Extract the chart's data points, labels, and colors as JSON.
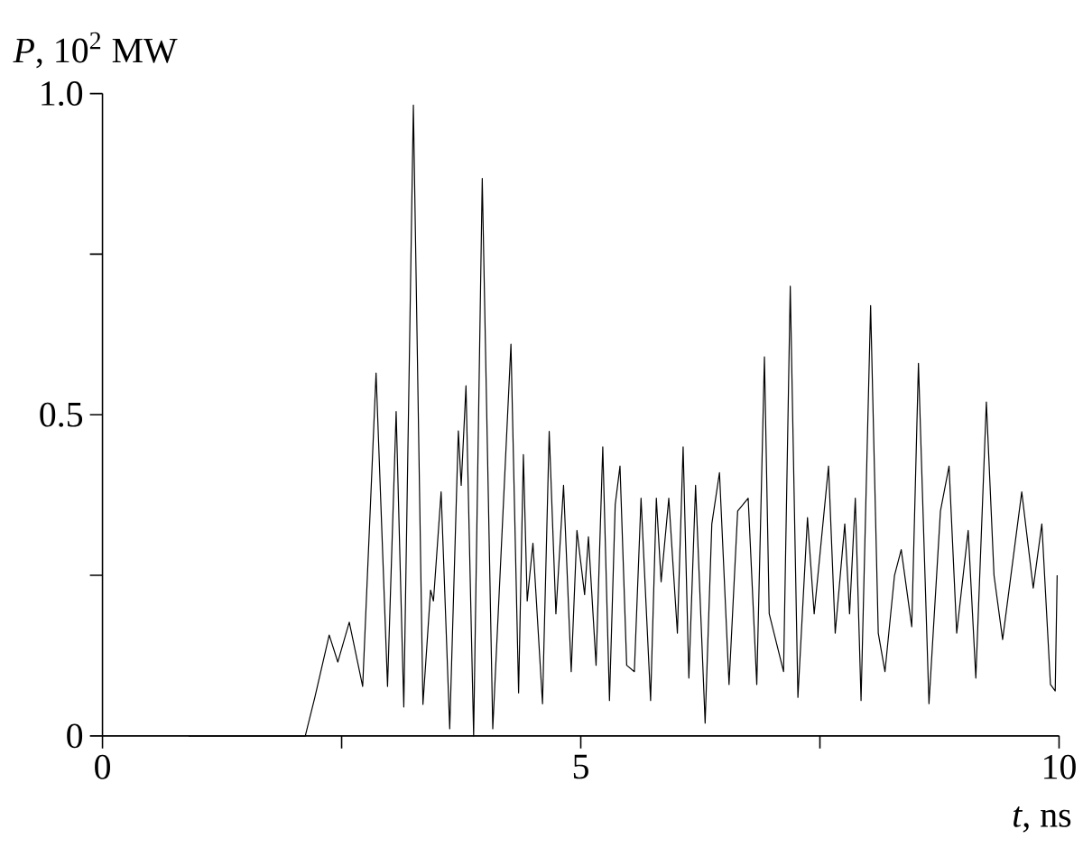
{
  "chart_data": {
    "type": "line",
    "xlabel": "*t*, ns",
    "ylabel": "*P*, 10$^{2}$ MW",
    "xlim": [
      0,
      10
    ],
    "ylim": [
      0,
      1
    ],
    "xticks": [
      0,
      {
        "value": 2.5,
        "label": null
      },
      5,
      {
        "value": 7.5,
        "label": null
      },
      10
    ],
    "yticks": [
      0,
      {
        "value": 0.25,
        "label": null
      },
      {
        "value": 0.5,
        "label": "0.5"
      },
      {
        "value": 0.75,
        "label": null
      },
      {
        "value": 1,
        "label": "1.0"
      }
    ],
    "series": [
      {
        "color": "#000000",
        "x": [
          0.9,
          2.12,
          2.22,
          2.37,
          2.46,
          2.58,
          2.72,
          2.86,
          2.98,
          3.07,
          3.15,
          3.25,
          3.35,
          3.43,
          3.46,
          3.54,
          3.63,
          3.72,
          3.75,
          3.8,
          3.88,
          3.97,
          4.08,
          4.27,
          4.35,
          4.4,
          4.44,
          4.5,
          4.6,
          4.67,
          4.74,
          4.82,
          4.9,
          4.96,
          5.04,
          5.08,
          5.16,
          5.23,
          5.3,
          5.36,
          5.41,
          5.48,
          5.56,
          5.63,
          5.73,
          5.79,
          5.84,
          5.92,
          6.01,
          6.07,
          6.13,
          6.2,
          6.3,
          6.37,
          6.45,
          6.55,
          6.64,
          6.75,
          6.84,
          6.92,
          6.97,
          7.12,
          7.19,
          7.27,
          7.37,
          7.44,
          7.59,
          7.66,
          7.76,
          7.81,
          7.87,
          7.93,
          8.03,
          8.11,
          8.18,
          8.28,
          8.35,
          8.46,
          8.53,
          8.64,
          8.76,
          8.85,
          8.93,
          9.05,
          9.13,
          9.24,
          9.32,
          9.41,
          9.61,
          9.73,
          9.82,
          9.91,
          9.96,
          9.98
        ],
        "values": [
          0,
          0,
          0.06,
          0.157,
          0.115,
          0.177,
          0.077,
          0.565,
          0.077,
          0.505,
          0.045,
          0.982,
          0.049,
          0.227,
          0.21,
          0.38,
          0.011,
          0.475,
          0.39,
          0.545,
          0,
          0.868,
          0.011,
          0.61,
          0.067,
          0.438,
          0.21,
          0.3,
          0.05,
          0.474,
          0.19,
          0.39,
          0.1,
          0.32,
          0.22,
          0.31,
          0.11,
          0.45,
          0.055,
          0.36,
          0.42,
          0.11,
          0.1,
          0.37,
          0.055,
          0.37,
          0.24,
          0.37,
          0.16,
          0.45,
          0.09,
          0.39,
          0.02,
          0.33,
          0.41,
          0.08,
          0.35,
          0.37,
          0.08,
          0.59,
          0.19,
          0.1,
          0.7,
          0.06,
          0.34,
          0.19,
          0.42,
          0.16,
          0.33,
          0.19,
          0.37,
          0.055,
          0.67,
          0.16,
          0.1,
          0.25,
          0.29,
          0.17,
          0.58,
          0.05,
          0.35,
          0.42,
          0.16,
          0.32,
          0.09,
          0.52,
          0.25,
          0.15,
          0.38,
          0.23,
          0.33,
          0.08,
          0.07,
          0.25
        ]
      }
    ]
  }
}
